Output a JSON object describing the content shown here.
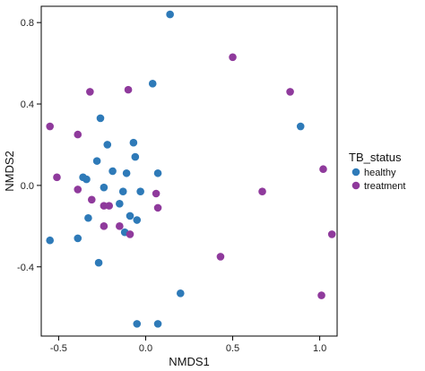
{
  "chart_data": {
    "type": "scatter",
    "xlabel": "NMDS1",
    "ylabel": "NMDS2",
    "xlim": [
      -0.6,
      1.1
    ],
    "ylim": [
      -0.74,
      0.88
    ],
    "x_ticks": [
      {
        "value": -0.5,
        "label": "-0.5"
      },
      {
        "value": 0.0,
        "label": "0.0"
      },
      {
        "value": 0.5,
        "label": "0.5"
      },
      {
        "value": 1.0,
        "label": "1.0"
      }
    ],
    "y_ticks": [
      {
        "value": -0.4,
        "label": "-0.4"
      },
      {
        "value": 0.0,
        "label": "0.0"
      },
      {
        "value": 0.4,
        "label": "0.4"
      },
      {
        "value": 0.8,
        "label": "0.8"
      }
    ],
    "grid": false,
    "legend": {
      "title": "TB_status",
      "placement": "right",
      "entries": [
        {
          "label": "healthy",
          "color": "#2e7ab8"
        },
        {
          "label": "treatment",
          "color": "#8f3a9c"
        }
      ]
    },
    "series": [
      {
        "name": "healthy",
        "color": "#2e7ab8",
        "points": [
          [
            0.14,
            0.84
          ],
          [
            0.04,
            0.5
          ],
          [
            0.89,
            0.29
          ],
          [
            -0.26,
            0.33
          ],
          [
            -0.22,
            0.2
          ],
          [
            -0.07,
            0.21
          ],
          [
            -0.28,
            0.12
          ],
          [
            -0.19,
            0.07
          ],
          [
            -0.06,
            0.14
          ],
          [
            -0.11,
            0.06
          ],
          [
            0.07,
            0.06
          ],
          [
            -0.36,
            0.04
          ],
          [
            -0.34,
            0.03
          ],
          [
            -0.24,
            -0.01
          ],
          [
            -0.13,
            -0.03
          ],
          [
            -0.03,
            -0.03
          ],
          [
            -0.15,
            -0.09
          ],
          [
            -0.33,
            -0.16
          ],
          [
            -0.09,
            -0.15
          ],
          [
            -0.05,
            -0.17
          ],
          [
            -0.12,
            -0.23
          ],
          [
            -0.55,
            -0.27
          ],
          [
            -0.39,
            -0.26
          ],
          [
            -0.27,
            -0.38
          ],
          [
            0.2,
            -0.53
          ],
          [
            -0.05,
            -0.68
          ],
          [
            0.07,
            -0.68
          ]
        ]
      },
      {
        "name": "treatment",
        "color": "#8f3a9c",
        "points": [
          [
            0.5,
            0.63
          ],
          [
            -0.1,
            0.47
          ],
          [
            -0.32,
            0.46
          ],
          [
            0.83,
            0.46
          ],
          [
            -0.55,
            0.29
          ],
          [
            -0.39,
            0.25
          ],
          [
            1.02,
            0.08
          ],
          [
            -0.51,
            0.04
          ],
          [
            -0.39,
            -0.02
          ],
          [
            0.67,
            -0.03
          ],
          [
            0.06,
            -0.04
          ],
          [
            -0.31,
            -0.07
          ],
          [
            -0.24,
            -0.1
          ],
          [
            -0.21,
            -0.1
          ],
          [
            0.07,
            -0.11
          ],
          [
            -0.24,
            -0.2
          ],
          [
            -0.15,
            -0.2
          ],
          [
            -0.09,
            -0.24
          ],
          [
            1.07,
            -0.24
          ],
          [
            0.43,
            -0.35
          ],
          [
            1.01,
            -0.54
          ]
        ]
      }
    ]
  }
}
